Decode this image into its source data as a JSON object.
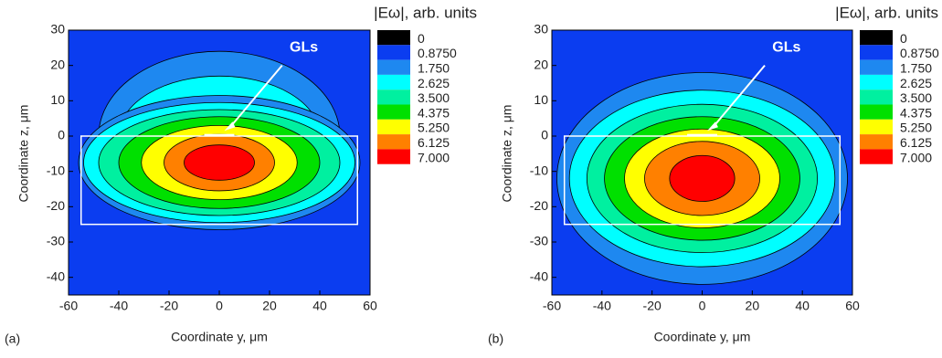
{
  "chart_data": [
    {
      "type": "contour",
      "panel_label": "(a)",
      "xlabel": "Coordinate y, μm",
      "ylabel": "Coordinate z, μm",
      "xlim": [
        -60,
        60
      ],
      "ylim": [
        -45,
        30
      ],
      "xticks": [
        -60,
        -40,
        -20,
        0,
        20,
        40,
        60
      ],
      "yticks": [
        30,
        20,
        10,
        0,
        -10,
        -20,
        -30,
        -40
      ],
      "colorbar_title": "|Eω|, arb. units",
      "levels": [
        0,
        {
          "value": 0.875,
          "label": "0.8750"
        },
        {
          "value": 1.75,
          "label": "1.750"
        },
        {
          "value": 2.625,
          "label": "2.625"
        },
        {
          "value": 3.5,
          "label": "3.500"
        },
        {
          "value": 4.375,
          "label": "4.375"
        },
        {
          "value": 5.25,
          "label": "5.250"
        },
        {
          "value": 6.125,
          "label": "6.125"
        },
        {
          "value": 7,
          "label": "7.000"
        }
      ],
      "colors": [
        "#000000",
        "#0b3df0",
        "#1e88f0",
        "#00ffff",
        "#00f0a0",
        "#00e000",
        "#ffff00",
        "#ff8000",
        "#ff0000"
      ],
      "annotation": "GLs"
    },
    {
      "type": "contour",
      "panel_label": "(b)",
      "xlabel": "Coordinate y, μm",
      "ylabel": "Coordinate z, μm",
      "xlim": [
        -60,
        60
      ],
      "ylim": [
        -45,
        30
      ],
      "xticks": [
        -60,
        -40,
        -20,
        0,
        20,
        40,
        60
      ],
      "yticks": [
        30,
        20,
        10,
        0,
        -10,
        -20,
        -30,
        -40
      ],
      "colorbar_title": "|Eω|, arb. units",
      "levels": [
        0,
        {
          "value": 0.875,
          "label": "0.8750"
        },
        {
          "value": 1.75,
          "label": "1.750"
        },
        {
          "value": 2.625,
          "label": "2.625"
        },
        {
          "value": 3.5,
          "label": "3.500"
        },
        {
          "value": 4.375,
          "label": "4.375"
        },
        {
          "value": 5.25,
          "label": "5.250"
        },
        {
          "value": 6.125,
          "label": "6.125"
        },
        {
          "value": 7,
          "label": "7.000"
        }
      ],
      "colors": [
        "#000000",
        "#0b3df0",
        "#1e88f0",
        "#00ffff",
        "#00f0a0",
        "#00e000",
        "#ffff00",
        "#ff8000",
        "#ff0000"
      ],
      "annotation": "GLs"
    }
  ]
}
